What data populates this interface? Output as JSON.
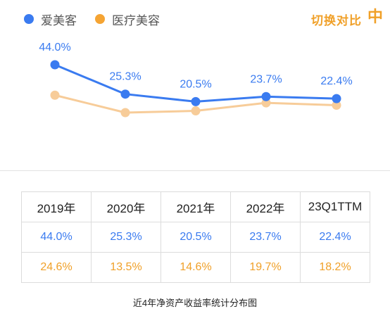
{
  "legend": {
    "items": [
      {
        "label": "爱美客",
        "color": "#3a7bf0"
      },
      {
        "label": "医疗美容",
        "color": "#f5a433"
      }
    ]
  },
  "switch_label": "切换对比",
  "switch_icon": "中",
  "chart_data": {
    "type": "line",
    "categories": [
      "2019年",
      "2020年",
      "2021年",
      "2022年",
      "23Q1TTM"
    ],
    "series": [
      {
        "name": "爱美客",
        "color": "#3a7bf0",
        "values": [
          44.0,
          25.3,
          20.5,
          23.7,
          22.4
        ],
        "labels": [
          "44.0%",
          "25.3%",
          "20.5%",
          "23.7%",
          "22.4%"
        ]
      },
      {
        "name": "医疗美容",
        "color": "#f7cc99",
        "values": [
          24.6,
          13.5,
          14.6,
          19.7,
          18.2
        ]
      }
    ],
    "ylim": [
      0,
      50
    ],
    "grid": false
  },
  "table": {
    "headers": [
      "2019年",
      "2020年",
      "2021年",
      "2022年",
      "23Q1TTM"
    ],
    "rows": [
      {
        "color": "#3a7bf0",
        "cells": [
          "44.0%",
          "25.3%",
          "20.5%",
          "23.7%",
          "22.4%"
        ]
      },
      {
        "color": "#f0a028",
        "cells": [
          "24.6%",
          "13.5%",
          "14.6%",
          "19.7%",
          "18.2%"
        ]
      }
    ]
  },
  "caption": "近4年净资产收益率统计分布图"
}
